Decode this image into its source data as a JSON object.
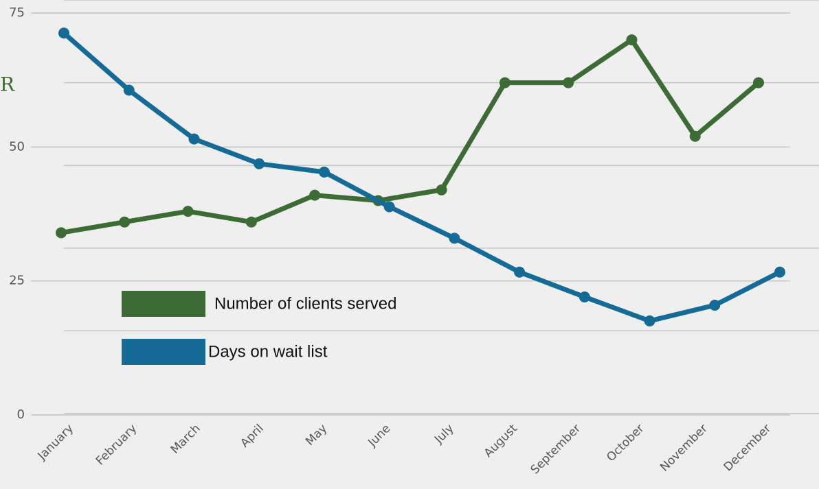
{
  "chart_data": {
    "type": "line",
    "y_label": "R",
    "categories": [
      "January",
      "February",
      "March",
      "April",
      "May",
      "June",
      "July",
      "August",
      "September",
      "October",
      "November",
      "December"
    ],
    "series": [
      {
        "name": "Number of clients served",
        "color": "#3d6b35",
        "values": [
          34,
          36,
          38,
          36,
          41,
          40,
          42,
          62,
          62,
          70,
          52,
          62
        ]
      },
      {
        "name": "Days on wait list",
        "color": "#166a96",
        "axis": "y2",
        "values": [
          46,
          39.1,
          33.2,
          30.2,
          29.2,
          25,
          21.2,
          17.1,
          14.1,
          11.2,
          13.1,
          17.1
        ]
      }
    ],
    "ylim": [
      0,
      75
    ],
    "yticks": [
      0,
      25,
      50,
      75
    ],
    "y2lim": [
      0,
      50
    ],
    "y2ticks": [
      0,
      10,
      20,
      30,
      40,
      50
    ],
    "grid": true
  }
}
